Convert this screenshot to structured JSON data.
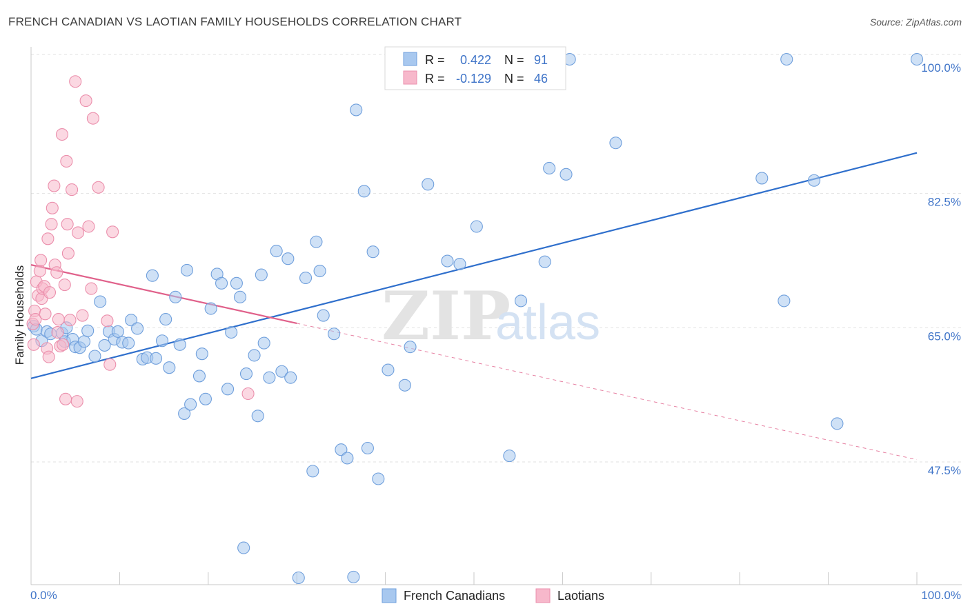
{
  "header": {
    "title": "FRENCH CANADIAN VS LAOTIAN FAMILY HOUSEHOLDS CORRELATION CHART",
    "source": "Source: ZipAtlas.com"
  },
  "legend": {
    "rows": [
      {
        "r_label": "R =",
        "r_value": "0.422",
        "n_label": "N =",
        "n_value": "91",
        "color": "#a8c8ef"
      },
      {
        "r_label": "R =",
        "r_value": "-0.129",
        "n_label": "N =",
        "n_value": "46",
        "color": "#f7b8cb"
      }
    ]
  },
  "bottom_legend": {
    "items": [
      {
        "label": "French Canadians",
        "color": "#a8c8ef"
      },
      {
        "label": "Laotians",
        "color": "#f7b8cb"
      }
    ]
  },
  "watermark": {
    "zip": "ZIP",
    "atlas": "atlas"
  },
  "chart_data": {
    "type": "scatter",
    "title": "FRENCH CANADIAN VS LAOTIAN FAMILY HOUSEHOLDS CORRELATION CHART",
    "xlabel": "",
    "ylabel": "Family Households",
    "xlim": [
      0,
      100
    ],
    "ylim": [
      31.5,
      102.5
    ],
    "x_tick_labels": [
      "0.0%",
      "100.0%"
    ],
    "y_ticks": [
      47.5,
      65.0,
      82.5,
      100.0
    ],
    "y_tick_labels": [
      "47.5%",
      "65.0%",
      "82.5%",
      "100.0%"
    ],
    "grid": true,
    "series": [
      {
        "name": "French Canadians",
        "color": "#a8c8ef",
        "stroke": "#6f9fdc",
        "trend_color": "#2f6fcc",
        "trend": {
          "x0": 0,
          "y0": 58.4,
          "x1": 100,
          "y1": 87.8,
          "dashed_from": null
        },
        "points": [
          [
            0.3,
            65.2
          ],
          [
            0.6,
            64.8
          ],
          [
            1.2,
            63.3
          ],
          [
            1.8,
            64.5
          ],
          [
            2.2,
            64.2
          ],
          [
            3.5,
            64.3
          ],
          [
            3.8,
            63.2
          ],
          [
            4.0,
            65.0
          ],
          [
            4.7,
            63.5
          ],
          [
            5.0,
            62.5
          ],
          [
            5.5,
            62.4
          ],
          [
            6.0,
            63.2
          ],
          [
            6.4,
            64.6
          ],
          [
            7.2,
            61.3
          ],
          [
            7.8,
            68.4
          ],
          [
            8.3,
            62.7
          ],
          [
            8.8,
            64.5
          ],
          [
            9.4,
            63.5
          ],
          [
            9.8,
            64.5
          ],
          [
            10.3,
            63.1
          ],
          [
            11.0,
            63.0
          ],
          [
            11.3,
            66.0
          ],
          [
            12.0,
            64.9
          ],
          [
            12.6,
            60.9
          ],
          [
            13.1,
            61.1
          ],
          [
            13.7,
            71.8
          ],
          [
            14.1,
            61.0
          ],
          [
            14.8,
            63.3
          ],
          [
            15.2,
            66.1
          ],
          [
            15.6,
            59.8
          ],
          [
            16.3,
            69.0
          ],
          [
            16.8,
            62.8
          ],
          [
            17.3,
            53.8
          ],
          [
            17.6,
            72.5
          ],
          [
            18.0,
            55.0
          ],
          [
            19.0,
            58.7
          ],
          [
            19.3,
            61.6
          ],
          [
            19.7,
            55.7
          ],
          [
            20.3,
            67.5
          ],
          [
            21.0,
            72.0
          ],
          [
            21.5,
            70.8
          ],
          [
            22.2,
            57.0
          ],
          [
            22.6,
            64.4
          ],
          [
            23.2,
            70.8
          ],
          [
            23.6,
            69.0
          ],
          [
            24.0,
            36.3
          ],
          [
            24.3,
            59.0
          ],
          [
            25.2,
            61.4
          ],
          [
            25.6,
            53.5
          ],
          [
            26.0,
            71.9
          ],
          [
            26.3,
            63.0
          ],
          [
            26.9,
            58.5
          ],
          [
            27.7,
            75.0
          ],
          [
            28.3,
            59.3
          ],
          [
            29.0,
            74.0
          ],
          [
            29.3,
            58.5
          ],
          [
            30.2,
            32.4
          ],
          [
            31.0,
            71.5
          ],
          [
            31.8,
            46.3
          ],
          [
            32.2,
            76.2
          ],
          [
            32.6,
            72.4
          ],
          [
            33.0,
            66.6
          ],
          [
            34.2,
            64.2
          ],
          [
            35.0,
            49.1
          ],
          [
            35.7,
            48.0
          ],
          [
            36.4,
            32.5
          ],
          [
            36.7,
            93.4
          ],
          [
            37.6,
            82.8
          ],
          [
            38.0,
            49.3
          ],
          [
            38.6,
            74.9
          ],
          [
            39.2,
            45.3
          ],
          [
            40.3,
            59.5
          ],
          [
            42.2,
            57.5
          ],
          [
            42.8,
            62.5
          ],
          [
            44.8,
            83.7
          ],
          [
            47.0,
            73.7
          ],
          [
            48.4,
            73.3
          ],
          [
            50.3,
            78.2
          ],
          [
            54.0,
            48.3
          ],
          [
            55.3,
            68.5
          ],
          [
            58.0,
            73.6
          ],
          [
            58.5,
            85.8
          ],
          [
            60.4,
            85.0
          ],
          [
            60.8,
            100.0
          ],
          [
            66.0,
            89.1
          ],
          [
            85.3,
            100.0
          ],
          [
            82.5,
            84.5
          ],
          [
            88.4,
            84.2
          ],
          [
            85.0,
            68.5
          ],
          [
            100.0,
            100.0
          ],
          [
            91.0,
            52.5
          ]
        ]
      },
      {
        "name": "Laotians",
        "color": "#f7b8cb",
        "stroke": "#eb8fac",
        "trend_color": "#e0608a",
        "trend": {
          "x0": 0,
          "y0": 73.2,
          "x1": 100,
          "y1": 47.8,
          "solid_until": 30
        },
        "points": [
          [
            0.2,
            65.5
          ],
          [
            0.3,
            62.8
          ],
          [
            0.4,
            67.2
          ],
          [
            0.5,
            66.1
          ],
          [
            0.6,
            71.0
          ],
          [
            0.8,
            69.2
          ],
          [
            1.0,
            72.4
          ],
          [
            1.1,
            73.8
          ],
          [
            1.2,
            68.8
          ],
          [
            1.3,
            70.1
          ],
          [
            1.5,
            70.4
          ],
          [
            1.6,
            66.8
          ],
          [
            1.8,
            62.3
          ],
          [
            1.9,
            76.6
          ],
          [
            2.0,
            61.2
          ],
          [
            2.1,
            69.6
          ],
          [
            2.3,
            78.5
          ],
          [
            2.4,
            80.6
          ],
          [
            2.6,
            83.5
          ],
          [
            2.7,
            73.2
          ],
          [
            2.9,
            72.2
          ],
          [
            3.0,
            64.4
          ],
          [
            3.1,
            66.1
          ],
          [
            3.3,
            62.6
          ],
          [
            3.5,
            90.2
          ],
          [
            3.6,
            62.8
          ],
          [
            3.8,
            70.6
          ],
          [
            3.9,
            55.7
          ],
          [
            4.0,
            86.7
          ],
          [
            4.1,
            78.5
          ],
          [
            4.2,
            74.7
          ],
          [
            4.4,
            66.0
          ],
          [
            4.6,
            83.0
          ],
          [
            5.0,
            97.1
          ],
          [
            5.2,
            55.4
          ],
          [
            5.3,
            77.4
          ],
          [
            5.8,
            66.6
          ],
          [
            6.2,
            94.6
          ],
          [
            6.5,
            78.2
          ],
          [
            6.8,
            70.1
          ],
          [
            7.0,
            92.3
          ],
          [
            7.6,
            83.3
          ],
          [
            8.6,
            65.9
          ],
          [
            8.9,
            60.2
          ],
          [
            9.2,
            77.5
          ],
          [
            24.5,
            56.4
          ]
        ]
      }
    ]
  }
}
